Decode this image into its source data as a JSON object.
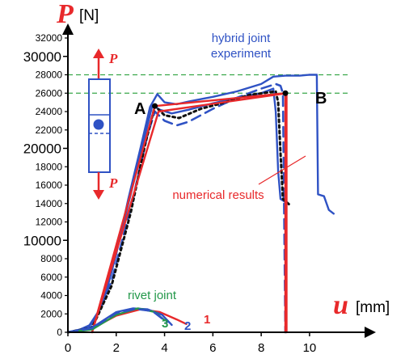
{
  "chart_data": {
    "type": "line",
    "y_axis_symbol": "P",
    "y_axis_unit": "[N]",
    "x_axis_symbol": "u",
    "x_axis_unit": "[mm]",
    "xlim": [
      0,
      11
    ],
    "ylim": [
      0,
      32000
    ],
    "x_ticks": [
      "0",
      "2",
      "4",
      "6",
      "8",
      "10"
    ],
    "y_ticks_major": [
      "30000",
      "20000",
      "10000"
    ],
    "y_ticks_minor": [
      "32000",
      "28000",
      "26000",
      "24000",
      "22000",
      "18000",
      "16000",
      "14000",
      "12000",
      "8000",
      "6000",
      "4000",
      "2000",
      "0"
    ],
    "reference_lines": [
      28000,
      26000
    ],
    "annotations": {
      "hybrid_line1": "hybrid joint",
      "hybrid_line2": "experiment",
      "numerical": "numerical results",
      "rivet": "rivet joint",
      "point_a": "A",
      "point_b": "B",
      "curve1": "1",
      "curve2": "2",
      "curve3": "3",
      "inset_p_top": "P",
      "inset_p_bottom": "P"
    },
    "points": {
      "A": [
        3.6,
        24600
      ],
      "B": [
        9.0,
        26000
      ]
    },
    "series": [
      {
        "style": "solid",
        "color": "#2f52c4",
        "points": [
          [
            0,
            0
          ],
          [
            0.5,
            300
          ],
          [
            1.0,
            900
          ],
          [
            1.5,
            3500
          ],
          [
            2.0,
            8500
          ],
          [
            2.5,
            14500
          ],
          [
            3.0,
            20000
          ],
          [
            3.4,
            24500
          ],
          [
            3.7,
            25900
          ],
          [
            4.0,
            25000
          ],
          [
            4.5,
            24800
          ],
          [
            5.0,
            25100
          ],
          [
            6.0,
            25600
          ],
          [
            7.0,
            26200
          ],
          [
            8.0,
            27000
          ],
          [
            8.5,
            27800
          ],
          [
            9.0,
            27900
          ],
          [
            9.6,
            27900
          ],
          [
            10.0,
            28000
          ],
          [
            10.3,
            28000
          ],
          [
            10.35,
            15000
          ],
          [
            10.6,
            14800
          ],
          [
            10.8,
            13300
          ],
          [
            11.0,
            12900
          ]
        ]
      },
      {
        "style": "solid",
        "color": "#2f52c4",
        "points": [
          [
            0,
            0
          ],
          [
            0.8,
            400
          ],
          [
            1.4,
            2800
          ],
          [
            2.0,
            8800
          ],
          [
            2.6,
            15000
          ],
          [
            3.1,
            20500
          ],
          [
            3.5,
            24700
          ],
          [
            3.8,
            24200
          ],
          [
            4.3,
            23800
          ],
          [
            5.0,
            24200
          ],
          [
            6.0,
            24900
          ],
          [
            7.0,
            25500
          ],
          [
            8.0,
            26000
          ],
          [
            8.5,
            26500
          ],
          [
            8.6,
            24000
          ],
          [
            8.7,
            17500
          ],
          [
            8.8,
            14500
          ],
          [
            9.1,
            14000
          ]
        ]
      },
      {
        "style": "dashed",
        "color": "#2f52c4",
        "points": [
          [
            0,
            0
          ],
          [
            1.0,
            600
          ],
          [
            1.8,
            5500
          ],
          [
            2.6,
            13500
          ],
          [
            3.3,
            21500
          ],
          [
            3.6,
            24000
          ],
          [
            4.0,
            23000
          ],
          [
            4.5,
            22500
          ],
          [
            5.0,
            22900
          ],
          [
            6.0,
            24300
          ],
          [
            7.0,
            25500
          ],
          [
            8.0,
            26500
          ],
          [
            8.6,
            27000
          ],
          [
            8.8,
            26800
          ],
          [
            8.9,
            26000
          ],
          [
            9.0,
            0
          ]
        ]
      },
      {
        "style": "dotted",
        "color": "#111111",
        "points": [
          [
            0,
            0
          ],
          [
            1.0,
            500
          ],
          [
            1.8,
            5000
          ],
          [
            2.6,
            13000
          ],
          [
            3.2,
            20500
          ],
          [
            3.6,
            24600
          ],
          [
            4.0,
            23600
          ],
          [
            4.6,
            23300
          ],
          [
            5.5,
            24300
          ],
          [
            6.5,
            25000
          ],
          [
            7.5,
            25800
          ],
          [
            8.6,
            26200
          ],
          [
            8.7,
            25000
          ],
          [
            8.8,
            19500
          ],
          [
            8.9,
            14500
          ],
          [
            9.2,
            13800
          ]
        ]
      },
      {
        "style": "solid",
        "color": "#e8292b",
        "points": [
          [
            1.0,
            0
          ],
          [
            3.6,
            24600
          ],
          [
            9.0,
            26000
          ],
          [
            9.0,
            0
          ]
        ]
      },
      {
        "style": "solid",
        "color": "#e8292b",
        "points": [
          [
            1.0,
            0
          ],
          [
            3.75,
            24000
          ],
          [
            9.05,
            26000
          ],
          [
            9.05,
            0
          ]
        ]
      },
      {
        "style": "solid",
        "color": "#e8292b",
        "points": [
          [
            0,
            0
          ],
          [
            1.0,
            400
          ],
          [
            2.0,
            1800
          ],
          [
            3.0,
            2500
          ],
          [
            3.8,
            2200
          ],
          [
            4.5,
            1400
          ],
          [
            4.9,
            900
          ]
        ]
      },
      {
        "style": "solid",
        "color": "#2f52c4",
        "points": [
          [
            0,
            0
          ],
          [
            1.0,
            500
          ],
          [
            2.0,
            2200
          ],
          [
            2.7,
            2600
          ],
          [
            3.3,
            2500
          ],
          [
            3.9,
            1900
          ],
          [
            4.3,
            800
          ]
        ]
      },
      {
        "style": "solid",
        "color": "#23984a",
        "points": [
          [
            0,
            0
          ],
          [
            1.0,
            300
          ],
          [
            2.0,
            1900
          ],
          [
            2.9,
            2600
          ],
          [
            3.6,
            2200
          ],
          [
            4.0,
            1300
          ]
        ]
      },
      {
        "style": "dashed",
        "color": "#2f52c4",
        "points": [
          [
            0,
            0
          ],
          [
            1.0,
            450
          ],
          [
            2.0,
            2100
          ],
          [
            2.8,
            2550
          ],
          [
            3.5,
            2300
          ],
          [
            4.1,
            1100
          ]
        ]
      }
    ]
  },
  "colors": {
    "axis_symbol": "#e8292b",
    "hybrid": "#2f52c4",
    "numerical": "#e8292b",
    "rivet": "#23984a",
    "reference": "#3aa84a"
  }
}
